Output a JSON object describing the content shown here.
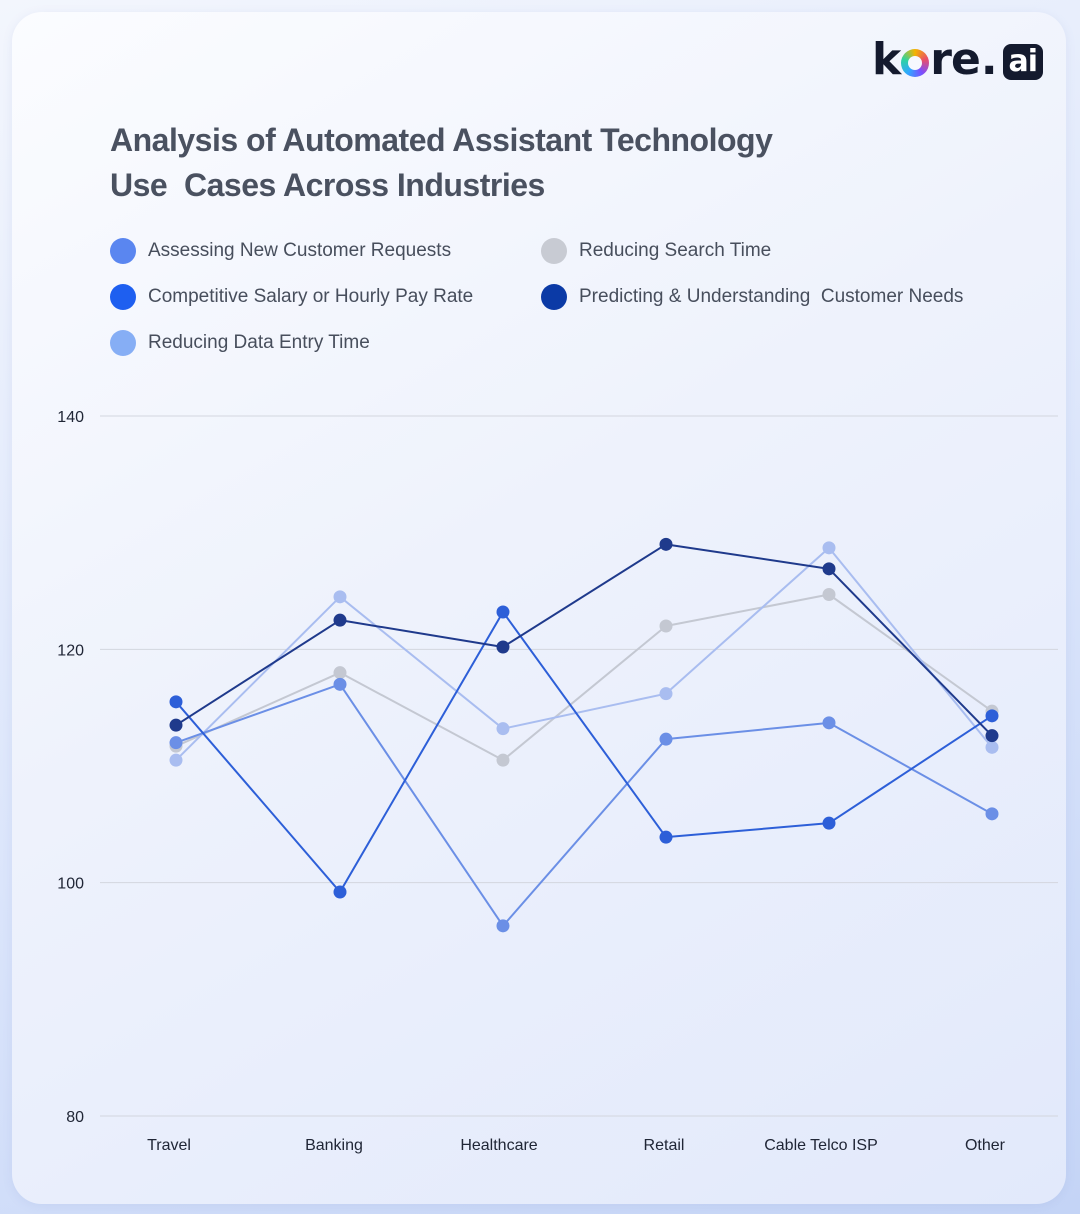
{
  "brand": {
    "logo_text": "kore.ai",
    "logo_main": "k",
    "logo_after_o": "re",
    "logo_dot": ".",
    "logo_ai": "ai"
  },
  "colors": {
    "assessing": "#6b8fe6",
    "competitive": "#2d5fd8",
    "data_entry": "#a9bdf0",
    "search": "#c4c8d2",
    "predicting": "#1f3a8c",
    "gridline": "#d3d6de"
  },
  "legend": [
    {
      "label": "Assessing New Customer Requests",
      "swatch": "#5a86f0"
    },
    {
      "label": "Reducing Search Time",
      "swatch": "#c8cbd3"
    },
    {
      "label": "Competitive Salary or Hourly Pay Rate",
      "swatch": "#1e5ff0"
    },
    {
      "label": "Predicting & Understanding  Customer Needs",
      "swatch": "#0b3aa6"
    },
    {
      "label": "Reducing Data Entry Time",
      "swatch": "#86aef5"
    }
  ],
  "chart_data": {
    "type": "line",
    "title": "Analysis of Automated Assistant Technology Use  Cases Across Industries",
    "title_lines": [
      "Analysis of Automated Assistant Technology",
      "Use  Cases Across Industries"
    ],
    "categories": [
      "Travel",
      "Banking",
      "Healthcare",
      "Retail",
      "Cable Telco ISP",
      "Other"
    ],
    "ylim": [
      80,
      140
    ],
    "yticks": [
      80,
      100,
      120,
      140
    ],
    "grid": true,
    "legend_position": "top-left",
    "xlabel": "",
    "ylabel": "",
    "series": [
      {
        "name": "Reducing Search Time",
        "color": "#c4c8d2",
        "values": [
          111.7,
          118.0,
          110.5,
          122.0,
          124.7,
          114.7
        ]
      },
      {
        "name": "Reducing Data Entry Time",
        "color": "#a9bdf0",
        "values": [
          110.5,
          124.5,
          113.2,
          116.2,
          128.7,
          111.6
        ]
      },
      {
        "name": "Assessing New Customer Requests",
        "color": "#6b8fe6",
        "values": [
          112.0,
          117.0,
          96.3,
          112.3,
          113.7,
          105.9
        ]
      },
      {
        "name": "Competitive Salary or Hourly Pay Rate",
        "color": "#2d5fd8",
        "values": [
          115.5,
          99.2,
          123.2,
          103.9,
          105.1,
          114.3
        ]
      },
      {
        "name": "Predicting & Understanding  Customer Needs",
        "color": "#1f3a8c",
        "values": [
          113.5,
          122.5,
          120.2,
          129.0,
          126.9,
          112.6
        ]
      }
    ]
  }
}
